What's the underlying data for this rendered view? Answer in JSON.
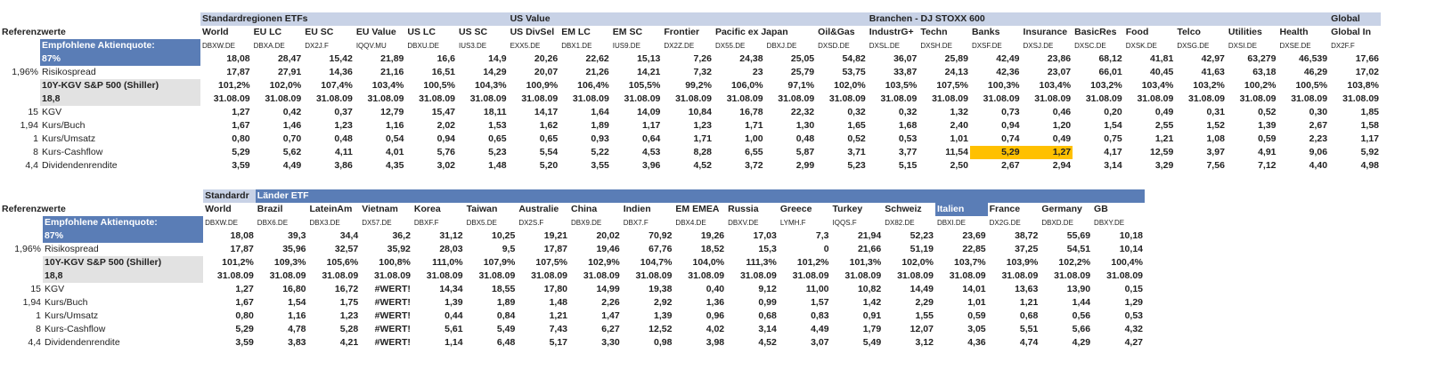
{
  "tables": [
    {
      "rows": [
        [
          null,
          null,
          "Standardregionen ETFs",
          null,
          null,
          null,
          null,
          null,
          "US Value",
          null,
          null,
          null,
          null,
          null,
          null,
          "Branchen - DJ STOXX 600",
          null,
          null,
          null,
          null,
          null,
          null,
          null,
          null,
          "Global"
        ],
        [
          "Referenzwerte",
          null,
          "World",
          "EU LC",
          "EU SC",
          "EU Value",
          "US LC",
          "US SC",
          "US DivSel",
          "EM LC",
          "EM SC",
          "Frontier",
          "Pacific ex Japan",
          null,
          "Oil&Gas",
          "IndustrG+",
          "Techn",
          "Banks",
          "Insurance",
          "BasicRes",
          "Food",
          "Telco",
          "Utilities",
          "Health",
          "Global In"
        ],
        [
          null,
          "Empfohlene Aktienquote:",
          "DBXW.DE",
          "DBXA.DE",
          "DX2J.F",
          "IQQV.MU",
          "DBXU.DE",
          "IUS3.DE",
          "EXX5.DE",
          "DBX1.DE",
          "IUS9.DE",
          "DX2Z.DE",
          "DX55.DE",
          "DBXJ.DE",
          "DXSD.DE",
          "DXSL.DE",
          "DXSH.DE",
          "DXSF.DE",
          "DXSJ.DE",
          "DXSC.DE",
          "DXSK.DE",
          "DXSG.DE",
          "DXSI.DE",
          "DXSE.DE",
          "DX2F.F"
        ],
        [
          null,
          "87%",
          "18,08",
          "28,47",
          "15,42",
          "21,89",
          "16,6",
          "14,9",
          "20,26",
          "22,62",
          "15,13",
          "7,26",
          "24,38",
          "25,05",
          "54,82",
          "36,07",
          "25,89",
          "42,49",
          "23,86",
          "68,12",
          "41,81",
          "42,97",
          "63,279",
          "46,539",
          "17,66"
        ],
        [
          "1,96%",
          "Risikospread",
          "17,87",
          "27,91",
          "14,36",
          "21,16",
          "16,51",
          "14,29",
          "20,07",
          "21,26",
          "14,21",
          "7,32",
          "23",
          "25,79",
          "53,75",
          "33,87",
          "24,13",
          "42,36",
          "23,07",
          "66,01",
          "40,45",
          "41,63",
          "63,18",
          "46,29",
          "17,02"
        ],
        [
          null,
          "10Y-KGV S&P 500 (Shiller)",
          "101,2%",
          "102,0%",
          "107,4%",
          "103,4%",
          "100,5%",
          "104,3%",
          "100,9%",
          "106,4%",
          "105,5%",
          "99,2%",
          "106,0%",
          "97,1%",
          "102,0%",
          "103,5%",
          "107,5%",
          "100,3%",
          "103,4%",
          "103,2%",
          "103,4%",
          "103,2%",
          "100,2%",
          "100,5%",
          "103,8%"
        ],
        [
          null,
          "18,8",
          "31.08.09",
          "31.08.09",
          "31.08.09",
          "31.08.09",
          "31.08.09",
          "31.08.09",
          "31.08.09",
          "31.08.09",
          "31.08.09",
          "31.08.09",
          "31.08.09",
          "31.08.09",
          "31.08.09",
          "31.08.09",
          "31.08.09",
          "31.08.09",
          "31.08.09",
          "31.08.09",
          "31.08.09",
          "31.08.09",
          "31.08.09",
          "31.08.09",
          "31.08.09"
        ],
        [
          "15",
          "KGV",
          "1,27",
          "0,42",
          "0,37",
          "12,79",
          "15,47",
          "18,11",
          "14,17",
          "1,64",
          "14,09",
          "10,84",
          "16,78",
          "22,32",
          "0,32",
          "0,32",
          "1,32",
          "0,73",
          "0,46",
          "0,20",
          "0,49",
          "0,31",
          "0,52",
          "0,30",
          "1,85"
        ],
        [
          "1,94",
          "Kurs/Buch",
          "1,67",
          "1,46",
          "1,23",
          "1,16",
          "2,02",
          "1,53",
          "1,62",
          "1,89",
          "1,17",
          "1,23",
          "1,71",
          "1,30",
          "1,65",
          "1,68",
          "2,40",
          "0,94",
          "1,20",
          "1,54",
          "2,55",
          "1,52",
          "1,39",
          "2,67",
          "1,58"
        ],
        [
          "1",
          "Kurs/Umsatz",
          "0,80",
          "0,70",
          "0,48",
          "0,54",
          "0,94",
          "0,65",
          "0,65",
          "0,93",
          "0,64",
          "1,71",
          "1,00",
          "0,48",
          "0,52",
          "0,53",
          "1,01",
          "0,74",
          "0,49",
          "0,75",
          "1,21",
          "1,08",
          "0,59",
          "2,23",
          "1,17"
        ],
        [
          "8",
          "Kurs-Cashflow",
          "5,29",
          "5,62",
          "4,11",
          "4,01",
          "5,76",
          "5,23",
          "5,54",
          "5,22",
          "4,53",
          "8,28",
          "6,55",
          "5,87",
          "3,71",
          "3,77",
          "11,54",
          "5,29",
          "1,27",
          "4,17",
          "12,59",
          "3,97",
          "4,91",
          "9,06",
          "5,92"
        ],
        [
          "4,4",
          "Dividendenrendite",
          "3,59",
          "4,49",
          "3,86",
          "4,35",
          "3,02",
          "1,48",
          "5,20",
          "3,55",
          "3,96",
          "4,52",
          "3,72",
          "2,99",
          "5,23",
          "5,15",
          "2,50",
          "2,67",
          "2,94",
          "3,14",
          "3,29",
          "7,56",
          "7,12",
          "4,40",
          "4,98"
        ]
      ]
    },
    {
      "rows": [
        [
          null,
          null,
          "Standardr",
          "Länder ETF",
          null,
          null,
          null,
          null,
          null,
          null,
          null,
          null,
          null,
          null,
          null,
          null,
          null,
          null,
          null,
          null
        ],
        [
          "Referenzwerte",
          null,
          "World",
          "Brazil",
          "LateinAm",
          "Vietnam",
          "Korea",
          "Taiwan",
          "Australie",
          "China",
          "Indien",
          "EM EMEA",
          "Russia",
          "Greece",
          "Turkey",
          "Schweiz",
          "Italien",
          "France",
          "Germany",
          "GB"
        ],
        [
          null,
          "Empfohlene Aktienquote:",
          "DBXW.DE",
          "DBX6.DE",
          "DBX3.DE",
          "DX57.DE",
          "DBXF.F",
          "DBX5.DE",
          "DX2S.F",
          "DBX9.DE",
          "DBX7.F",
          "DBX4.DE",
          "DBXV.DE",
          "LYMH.F",
          "IQQS.F",
          "DX82.DE",
          "DBXI.DE",
          "DX2G.DE",
          "DBXD.DE",
          "DBXY.DE"
        ],
        [
          null,
          "87%",
          "18,08",
          "39,3",
          "34,4",
          "36,2",
          "31,12",
          "10,25",
          "19,21",
          "20,02",
          "70,92",
          "19,26",
          "17,03",
          "7,3",
          "21,94",
          "52,23",
          "23,69",
          "38,72",
          "55,69",
          "10,18"
        ],
        [
          "1,96%",
          "Risikospread",
          "17,87",
          "35,96",
          "32,57",
          "35,92",
          "28,03",
          "9,5",
          "17,87",
          "19,46",
          "67,76",
          "18,52",
          "15,3",
          "0",
          "21,66",
          "51,19",
          "22,85",
          "37,25",
          "54,51",
          "10,14"
        ],
        [
          null,
          "10Y-KGV S&P 500 (Shiller)",
          "101,2%",
          "109,3%",
          "105,6%",
          "100,8%",
          "111,0%",
          "107,9%",
          "107,5%",
          "102,9%",
          "104,7%",
          "104,0%",
          "111,3%",
          "101,2%",
          "101,3%",
          "102,0%",
          "103,7%",
          "103,9%",
          "102,2%",
          "100,4%"
        ],
        [
          null,
          "18,8",
          "31.08.09",
          "31.08.09",
          "31.08.09",
          "31.08.09",
          "31.08.09",
          "31.08.09",
          "31.08.09",
          "31.08.09",
          "31.08.09",
          "31.08.09",
          "31.08.09",
          "31.08.09",
          "31.08.09",
          "31.08.09",
          "31.08.09",
          "31.08.09",
          "31.08.09",
          "31.08.09"
        ],
        [
          "15",
          "KGV",
          "1,27",
          "16,80",
          "16,72",
          "#WERT!",
          "14,34",
          "18,55",
          "17,80",
          "14,99",
          "19,38",
          "0,40",
          "9,12",
          "11,00",
          "10,82",
          "14,49",
          "14,01",
          "13,63",
          "13,90",
          "0,15"
        ],
        [
          "1,94",
          "Kurs/Buch",
          "1,67",
          "1,54",
          "1,75",
          "#WERT!",
          "1,39",
          "1,89",
          "1,48",
          "2,26",
          "2,92",
          "1,36",
          "0,99",
          "1,57",
          "1,42",
          "2,29",
          "1,01",
          "1,21",
          "1,44",
          "1,29"
        ],
        [
          "1",
          "Kurs/Umsatz",
          "0,80",
          "1,16",
          "1,23",
          "#WERT!",
          "0,44",
          "0,84",
          "1,21",
          "1,47",
          "1,39",
          "0,96",
          "0,68",
          "0,83",
          "0,91",
          "1,55",
          "0,59",
          "0,68",
          "0,56",
          "0,53"
        ],
        [
          "8",
          "Kurs-Cashflow",
          "5,29",
          "4,78",
          "5,28",
          "#WERT!",
          "5,61",
          "5,49",
          "7,43",
          "6,27",
          "12,52",
          "4,02",
          "3,14",
          "4,49",
          "1,79",
          "12,07",
          "3,05",
          "5,51",
          "5,66",
          "4,32"
        ],
        [
          "4,4",
          "Dividendenrendite",
          "3,59",
          "3,83",
          "4,21",
          "#WERT!",
          "1,14",
          "6,48",
          "5,17",
          "3,30",
          "0,98",
          "3,98",
          "4,52",
          "3,07",
          "5,49",
          "3,12",
          "4,36",
          "4,74",
          "4,29",
          "4,27"
        ]
      ]
    }
  ]
}
